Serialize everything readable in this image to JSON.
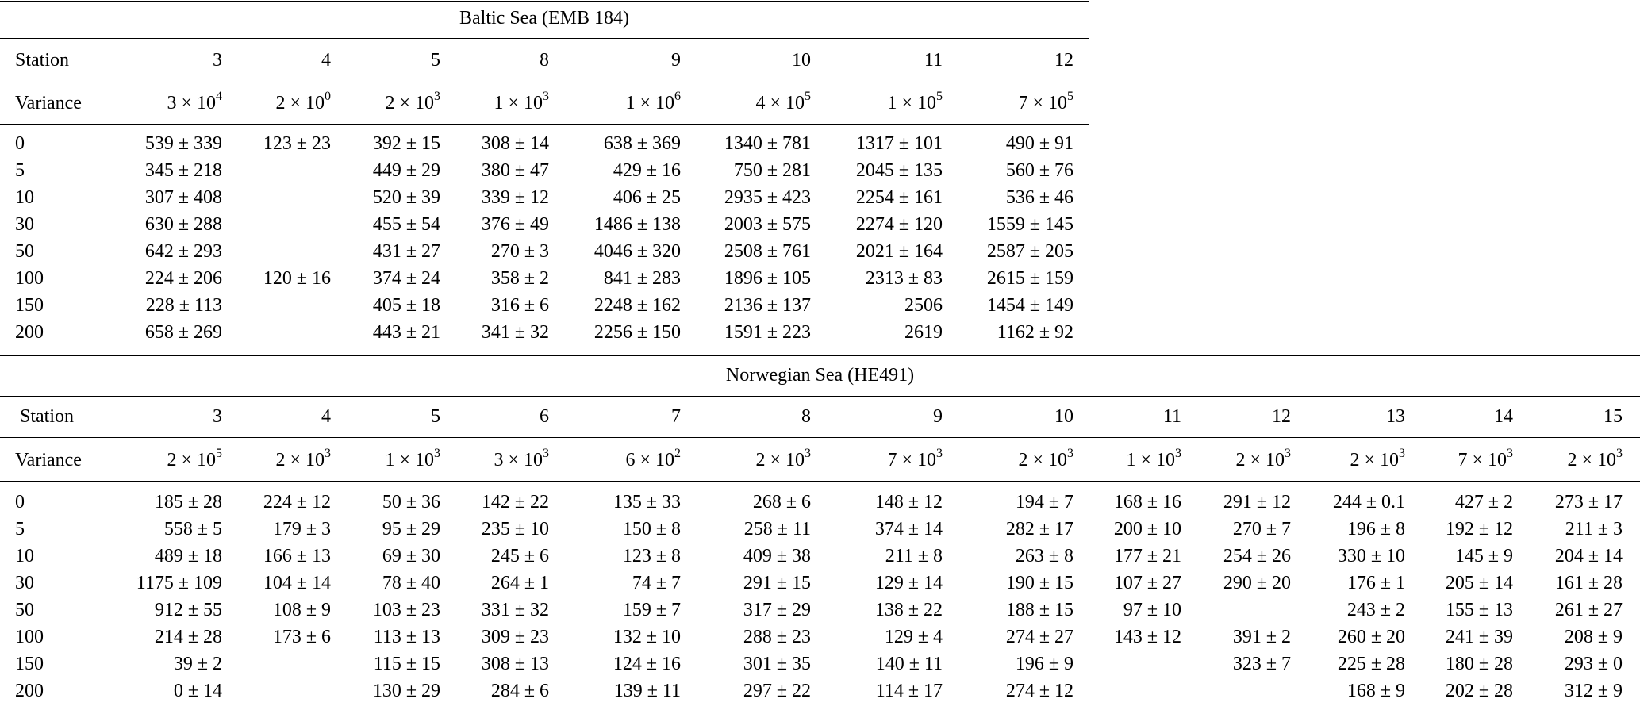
{
  "baltic": {
    "title": "Baltic Sea (EMB 184)",
    "station_label": "Station",
    "variance_label": "Variance",
    "stations": [
      "3",
      "4",
      "5",
      "8",
      "9",
      "10",
      "11",
      "12"
    ],
    "variance": [
      {
        "m": "3",
        "e": "4"
      },
      {
        "m": "2",
        "e": "0"
      },
      {
        "m": "2",
        "e": "3"
      },
      {
        "m": "1",
        "e": "3"
      },
      {
        "m": "1",
        "e": "6"
      },
      {
        "m": "4",
        "e": "5"
      },
      {
        "m": "1",
        "e": "5"
      },
      {
        "m": "7",
        "e": "5"
      }
    ],
    "rows": [
      {
        "depth": "0",
        "cells": [
          "539 ± 339",
          "123 ± 23",
          "392 ± 15",
          "308 ± 14",
          "638 ± 369",
          "1340 ± 781",
          "1317 ± 101",
          "490 ± 91"
        ]
      },
      {
        "depth": "5",
        "cells": [
          "345 ± 218",
          "",
          "449 ± 29",
          "380 ± 47",
          "429 ± 16",
          "750 ± 281",
          "2045 ± 135",
          "560 ± 76"
        ]
      },
      {
        "depth": "10",
        "cells": [
          "307 ± 408",
          "",
          "520 ± 39",
          "339 ± 12",
          "406 ± 25",
          "2935 ± 423",
          "2254 ± 161",
          "536 ± 46"
        ]
      },
      {
        "depth": "30",
        "cells": [
          "630 ± 288",
          "",
          "455 ± 54",
          "376 ± 49",
          "1486 ± 138",
          "2003 ± 575",
          "2274 ± 120",
          "1559 ± 145"
        ]
      },
      {
        "depth": "50",
        "cells": [
          "642 ± 293",
          "",
          "431 ± 27",
          "270 ± 3",
          "4046 ± 320",
          "2508 ± 761",
          "2021 ± 164",
          "2587 ± 205"
        ]
      },
      {
        "depth": "100",
        "cells": [
          "224 ± 206",
          "120 ± 16",
          "374 ± 24",
          "358 ± 2",
          "841 ± 283",
          "1896 ± 105",
          "2313 ± 83",
          "2615 ± 159"
        ]
      },
      {
        "depth": "150",
        "cells": [
          "228 ± 113",
          "",
          "405 ± 18",
          "316 ± 6",
          "2248 ± 162",
          "2136 ± 137",
          "2506",
          "1454 ± 149"
        ]
      },
      {
        "depth": "200",
        "cells": [
          "658 ± 269",
          "",
          "443 ± 21",
          "341 ± 32",
          "2256 ± 150",
          "1591 ± 223",
          "2619",
          "1162 ± 92"
        ]
      }
    ]
  },
  "norwegian": {
    "title": "Norwegian Sea (HE491)",
    "station_label": "Station",
    "variance_label": "Variance",
    "stations": [
      "3",
      "4",
      "5",
      "6",
      "7",
      "8",
      "9",
      "10",
      "11",
      "12",
      "13",
      "14",
      "15"
    ],
    "variance": [
      {
        "m": "2",
        "e": "5"
      },
      {
        "m": "2",
        "e": "3"
      },
      {
        "m": "1",
        "e": "3"
      },
      {
        "m": "3",
        "e": "3"
      },
      {
        "m": "6",
        "e": "2"
      },
      {
        "m": "2",
        "e": "3"
      },
      {
        "m": "7",
        "e": "3"
      },
      {
        "m": "2",
        "e": "3"
      },
      {
        "m": "1",
        "e": "3"
      },
      {
        "m": "2",
        "e": "3"
      },
      {
        "m": "2",
        "e": "3"
      },
      {
        "m": "7",
        "e": "3"
      },
      {
        "m": "2",
        "e": "3"
      }
    ],
    "rows": [
      {
        "depth": "0",
        "cells": [
          "185 ± 28",
          "224 ± 12",
          "50 ± 36",
          "142 ± 22",
          "135 ± 33",
          "268 ± 6",
          "148 ± 12",
          "194 ± 7",
          "168 ± 16",
          "291 ± 12",
          "244 ± 0.1",
          "427 ± 2",
          "273 ± 17"
        ]
      },
      {
        "depth": "5",
        "cells": [
          "558 ± 5",
          "179 ± 3",
          "95 ± 29",
          "235 ± 10",
          "150 ± 8",
          "258 ± 11",
          "374 ± 14",
          "282 ± 17",
          "200 ± 10",
          "270 ± 7",
          "196 ± 8",
          "192 ± 12",
          "211 ± 3"
        ]
      },
      {
        "depth": "10",
        "cells": [
          "489 ± 18",
          "166 ± 13",
          "69 ± 30",
          "245 ± 6",
          "123 ± 8",
          "409 ± 38",
          "211 ± 8",
          "263 ± 8",
          "177 ± 21",
          "254 ± 26",
          "330 ± 10",
          "145 ± 9",
          "204 ± 14"
        ]
      },
      {
        "depth": "30",
        "cells": [
          "1175 ± 109",
          "104 ± 14",
          "78 ± 40",
          "264 ± 1",
          "74 ± 7",
          "291 ± 15",
          "129 ± 14",
          "190 ± 15",
          "107 ± 27",
          "290 ± 20",
          "176 ± 1",
          "205 ± 14",
          "161 ± 28"
        ]
      },
      {
        "depth": "50",
        "cells": [
          "912 ± 55",
          "108 ± 9",
          "103 ± 23",
          "331 ± 32",
          "159 ± 7",
          "317 ± 29",
          "138 ± 22",
          "188 ± 15",
          "97 ± 10",
          "",
          "243 ± 2",
          "155 ± 13",
          "261 ± 27"
        ]
      },
      {
        "depth": "100",
        "cells": [
          "214 ± 28",
          "173 ± 6",
          "113 ± 13",
          "309 ± 23",
          "132 ± 10",
          "288 ± 23",
          "129 ± 4",
          "274 ± 27",
          "143 ± 12",
          "391 ± 2",
          "260 ± 20",
          "241 ± 39",
          "208 ± 9"
        ]
      },
      {
        "depth": "150",
        "cells": [
          "39 ± 2",
          "",
          "115 ± 15",
          "308 ± 13",
          "124 ± 16",
          "301 ± 35",
          "140 ± 11",
          "196 ± 9",
          "",
          "323 ± 7",
          "225 ± 28",
          "180 ± 28",
          "293 ± 0"
        ]
      },
      {
        "depth": "200",
        "cells": [
          "0 ± 14",
          "",
          "130 ± 29",
          "284 ± 6",
          "139 ± 11",
          "297 ± 22",
          "114 ± 17",
          "274 ± 12",
          "",
          "",
          "168 ± 9",
          "202 ± 28",
          "312 ± 9"
        ]
      }
    ]
  }
}
